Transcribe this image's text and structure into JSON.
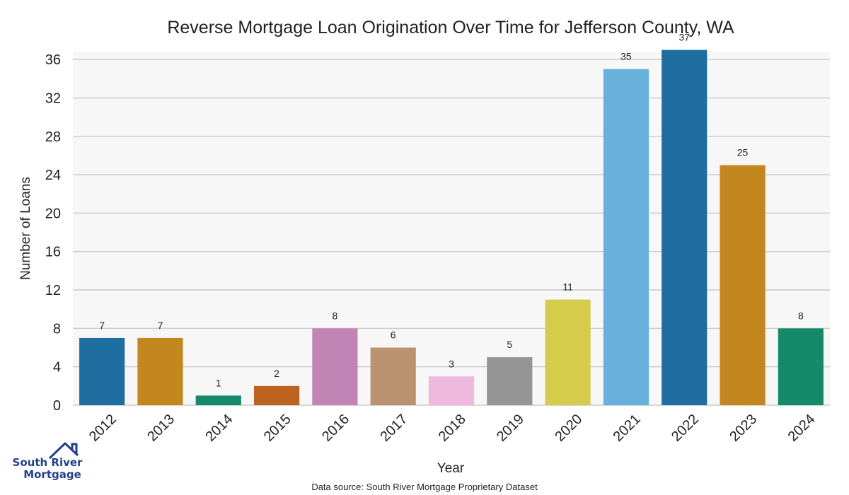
{
  "chart_data": {
    "type": "bar",
    "title": "Reverse Mortgage Loan Origination Over Time for Jefferson County, WA",
    "xlabel": "Year",
    "ylabel": "Number of Loans",
    "categories": [
      "2012",
      "2013",
      "2014",
      "2015",
      "2016",
      "2017",
      "2018",
      "2019",
      "2020",
      "2021",
      "2022",
      "2023",
      "2024"
    ],
    "values": [
      7,
      7,
      1,
      2,
      8,
      6,
      3,
      5,
      11,
      35,
      37,
      25,
      8
    ],
    "colors": [
      "#1f6ea1",
      "#c4861f",
      "#158a6a",
      "#bd6322",
      "#c283b5",
      "#bb9270",
      "#f0b8df",
      "#959595",
      "#d5cb4c",
      "#68b1dc",
      "#1f6ea1",
      "#c4861f",
      "#158a6a"
    ],
    "ylim": [
      0,
      38
    ],
    "yticks": [
      0,
      4,
      8,
      12,
      16,
      20,
      24,
      28,
      32,
      36
    ],
    "grid": true,
    "plot_background": "#f7f7f7",
    "gridline_color": "#cccccc"
  },
  "footer": {
    "source": "Data source: South River Mortgage Proprietary Dataset"
  },
  "logo": {
    "line1": "South River",
    "line2": "Mortgage",
    "color": "#22408a"
  }
}
